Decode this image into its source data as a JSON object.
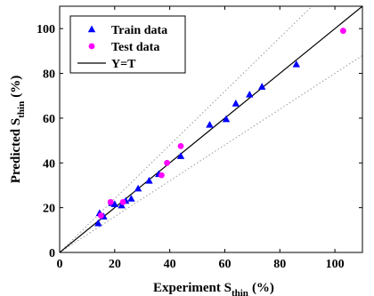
{
  "chart_data": {
    "type": "scatter",
    "x_label": {
      "main": "Experiment S",
      "sub": "thin",
      "unit": "(%)"
    },
    "y_label": {
      "main": "Predicted S",
      "sub": "thin",
      "unit": "(%)"
    },
    "xlim": [
      0,
      110
    ],
    "ylim": [
      0,
      110
    ],
    "x_ticks": [
      0,
      20,
      40,
      60,
      80,
      100
    ],
    "y_ticks": [
      0,
      20,
      40,
      60,
      80,
      100
    ],
    "grid": false,
    "legend_position": "top-left",
    "series": [
      {
        "name": "Train data",
        "marker": "triangle",
        "color": "#0000ff",
        "points": [
          [
            14,
            13
          ],
          [
            14.5,
            17.5
          ],
          [
            16,
            16
          ],
          [
            19,
            22
          ],
          [
            20,
            21.5
          ],
          [
            22.5,
            21
          ],
          [
            24,
            23
          ],
          [
            26,
            24
          ],
          [
            28.5,
            28.5
          ],
          [
            32.5,
            32
          ],
          [
            36,
            35
          ],
          [
            44,
            43
          ],
          [
            54.5,
            57
          ],
          [
            60.5,
            59.5
          ],
          [
            64,
            66.5
          ],
          [
            69,
            70.5
          ],
          [
            73.5,
            74
          ],
          [
            86,
            84
          ]
        ]
      },
      {
        "name": "Test data",
        "marker": "circle",
        "color": "#ff00ff",
        "points": [
          [
            15,
            16.5
          ],
          [
            18.5,
            22.5
          ],
          [
            23,
            22.5
          ],
          [
            37,
            34.5
          ],
          [
            39,
            40
          ],
          [
            44,
            47.5
          ],
          [
            103,
            99
          ]
        ]
      },
      {
        "name": "Y=T",
        "marker": "line",
        "color": "#000000",
        "points": [
          [
            0,
            0
          ],
          [
            110,
            110
          ]
        ]
      }
    ],
    "bounds": [
      {
        "slope": 1.2,
        "style": "dotted",
        "color": "#999999"
      },
      {
        "slope": 0.8,
        "style": "dotted",
        "color": "#999999"
      }
    ]
  }
}
